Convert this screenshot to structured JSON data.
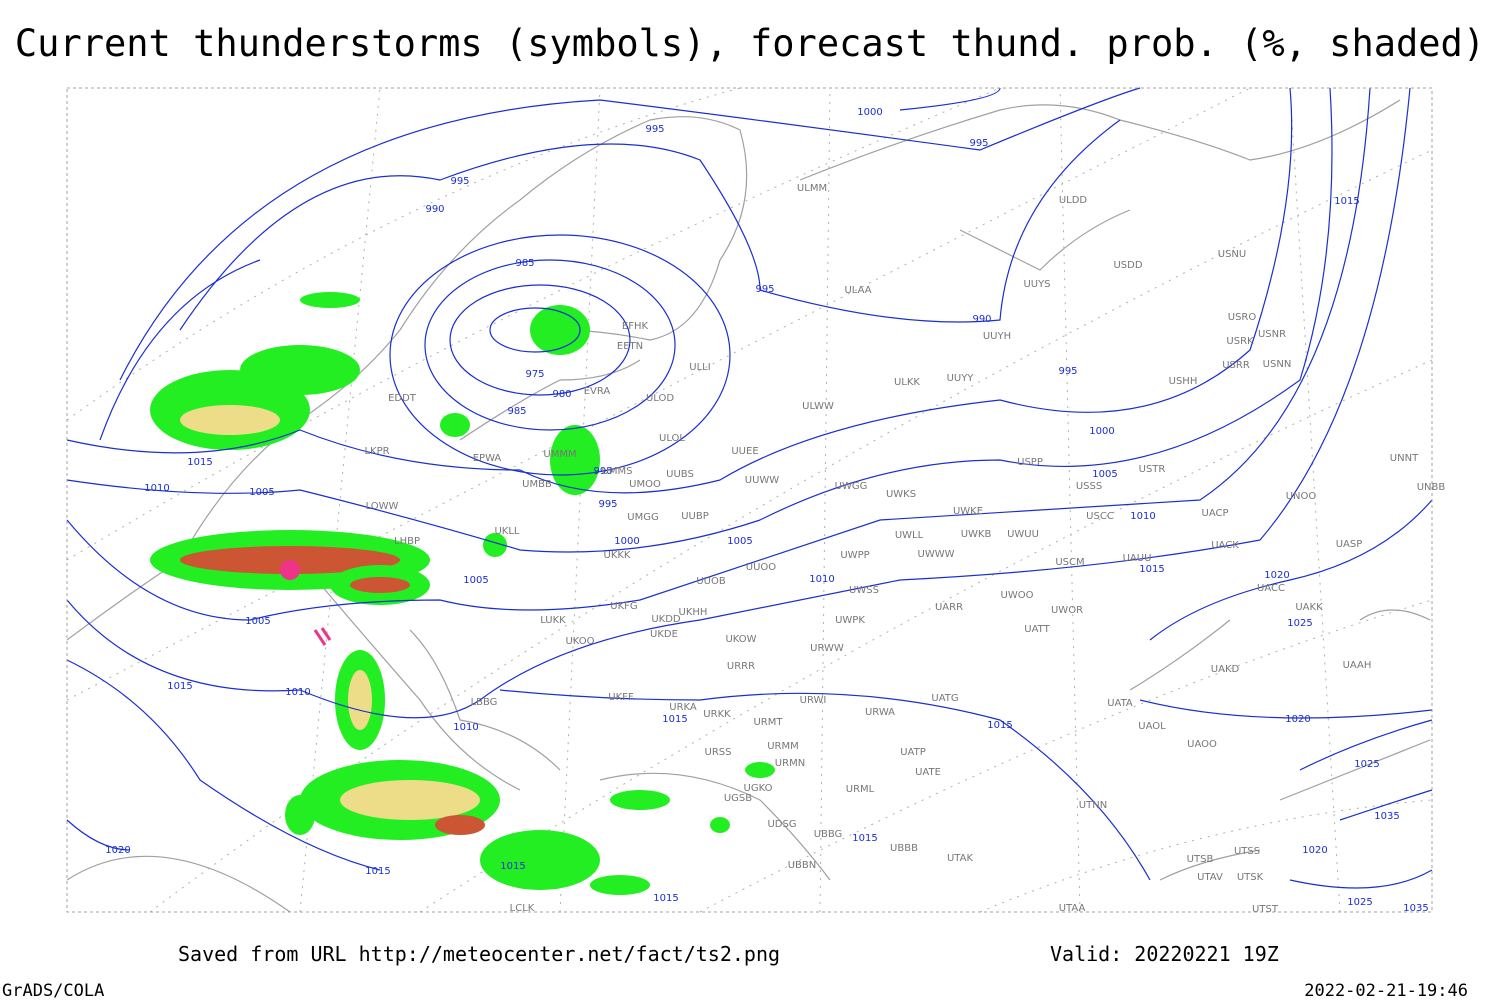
{
  "header": {
    "title": "Current thunderstorms (symbols), forecast thund. prob. (%, shaded)"
  },
  "map": {
    "isobar_labels": [
      995,
      995,
      990,
      985,
      975,
      980,
      985,
      990,
      995,
      1000,
      1005,
      1010,
      1005,
      1005,
      1010,
      1010,
      1015,
      1015,
      1015,
      1010,
      1005,
      1000,
      995,
      990,
      995,
      995,
      1000,
      1015,
      1020,
      1025,
      1020,
      1015,
      1010,
      1005,
      1015,
      1020,
      1015,
      1015,
      1015,
      1015,
      1025,
      1035,
      1020,
      1025,
      1035
    ],
    "stations": [
      "EFHK",
      "EETN",
      "EVRA",
      "ULLI",
      "ULOD",
      "ULOL",
      "UMMM",
      "UMMS",
      "UMOO",
      "UUBS",
      "UMBB",
      "UMGG",
      "UUBP",
      "UKKK",
      "UKLL",
      "EPWA",
      "EDDT",
      "LKPR",
      "LOWW",
      "LHBP",
      "UUEE",
      "UUWW",
      "ULWW",
      "ULKK",
      "UUYY",
      "UUYH",
      "UUYS",
      "ULAA",
      "ULMM",
      "ULDD",
      "USDD",
      "USNU",
      "USRO",
      "USRK",
      "USNR",
      "USRR",
      "USNN",
      "USHH",
      "USPP",
      "USTR",
      "USSS",
      "USCC",
      "UACP",
      "UACK",
      "UASP",
      "UNOO",
      "UNBB",
      "UNNT",
      "UWGG",
      "UWKS",
      "UWKE",
      "UWKB",
      "UWUU",
      "UWLL",
      "UWWW",
      "UWPP",
      "UUOO",
      "UUOB",
      "UWSS",
      "USCM",
      "UAUU",
      "UWOO",
      "UWOR",
      "UATT",
      "UARR",
      "UWPK",
      "UKHH",
      "UKFG",
      "UKDD",
      "UKDE",
      "UKOW",
      "URWW",
      "URRR",
      "LUKK",
      "UKOO",
      "UKFF",
      "URKA",
      "URKK",
      "URWI",
      "URWA",
      "UATG",
      "URMT",
      "URSS",
      "URMM",
      "URMN",
      "UATP",
      "UATE",
      "URML",
      "UGKO",
      "UGSB",
      "UBBB",
      "UTAK",
      "UTNN",
      "UATA",
      "UAOL",
      "UAOO",
      "UAKD",
      "UAKK",
      "UACC",
      "UAAH",
      "UTSB",
      "UTSS",
      "UTAV",
      "UTSK",
      "UTAA",
      "UTST",
      "LBBG",
      "LCLK",
      "UDSG",
      "UBBG",
      "UBBN"
    ]
  },
  "footer": {
    "source": "Saved from URL http://meteocenter.net/fact/ts2.png",
    "valid": "Valid: 20220221 19Z",
    "credit": "GrADS/COLA",
    "timestamp": "2022-02-21-19:46"
  }
}
